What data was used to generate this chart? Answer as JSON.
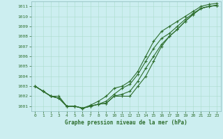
{
  "title": "Graphe pression niveau de la mer (hPa)",
  "background_color": "#cceef0",
  "grid_color": "#aaddcc",
  "line_color": "#2d6e2d",
  "marker_color": "#2d6e2d",
  "xlim": [
    -0.5,
    23.5
  ],
  "ylim": [
    1000.5,
    1011.5
  ],
  "yticks": [
    1001,
    1002,
    1003,
    1004,
    1005,
    1006,
    1007,
    1008,
    1009,
    1010,
    1011
  ],
  "xticks": [
    0,
    1,
    2,
    3,
    4,
    5,
    6,
    7,
    8,
    9,
    10,
    11,
    12,
    13,
    14,
    15,
    16,
    17,
    18,
    19,
    20,
    21,
    22,
    23
  ],
  "series": [
    {
      "y": [
        1003.0,
        1002.5,
        1002.0,
        1002.0,
        1001.0,
        1001.0,
        1000.8,
        1001.0,
        1001.2,
        1001.3,
        1002.0,
        1002.0,
        1002.0,
        1003.0,
        1004.0,
        1005.5,
        1007.0,
        1008.0,
        1008.7,
        1009.5,
        1010.2,
        1010.8,
        1011.0,
        1011.1
      ],
      "marker": "+",
      "ms": 3.0,
      "lw": 0.8
    },
    {
      "y": [
        1003.0,
        1002.5,
        1002.0,
        1001.8,
        1001.0,
        1001.0,
        1000.8,
        1001.0,
        1001.2,
        1001.3,
        1002.0,
        1002.2,
        1002.5,
        1003.5,
        1004.8,
        1006.0,
        1007.2,
        1008.0,
        1008.7,
        1009.5,
        1010.2,
        1010.8,
        1011.0,
        1011.1
      ],
      "marker": "+",
      "ms": 3.0,
      "lw": 0.8
    },
    {
      "y": [
        1003.0,
        1002.5,
        1002.0,
        1001.8,
        1001.0,
        1001.0,
        1000.8,
        1001.0,
        1001.2,
        1001.5,
        1002.2,
        1002.8,
        1003.2,
        1004.2,
        1005.5,
        1006.8,
        1007.8,
        1008.3,
        1009.0,
        1009.7,
        1010.3,
        1010.8,
        1011.0,
        1011.1
      ],
      "marker": "+",
      "ms": 3.0,
      "lw": 0.8
    },
    {
      "y": [
        1003.0,
        1002.5,
        1002.0,
        1001.8,
        1001.0,
        1001.0,
        1000.8,
        1001.1,
        1001.5,
        1002.0,
        1002.8,
        1003.0,
        1003.5,
        1004.5,
        1006.0,
        1007.5,
        1008.5,
        1009.0,
        1009.5,
        1010.0,
        1010.5,
        1011.0,
        1011.2,
        1011.3
      ],
      "marker": "+",
      "ms": 3.5,
      "lw": 0.8
    }
  ]
}
